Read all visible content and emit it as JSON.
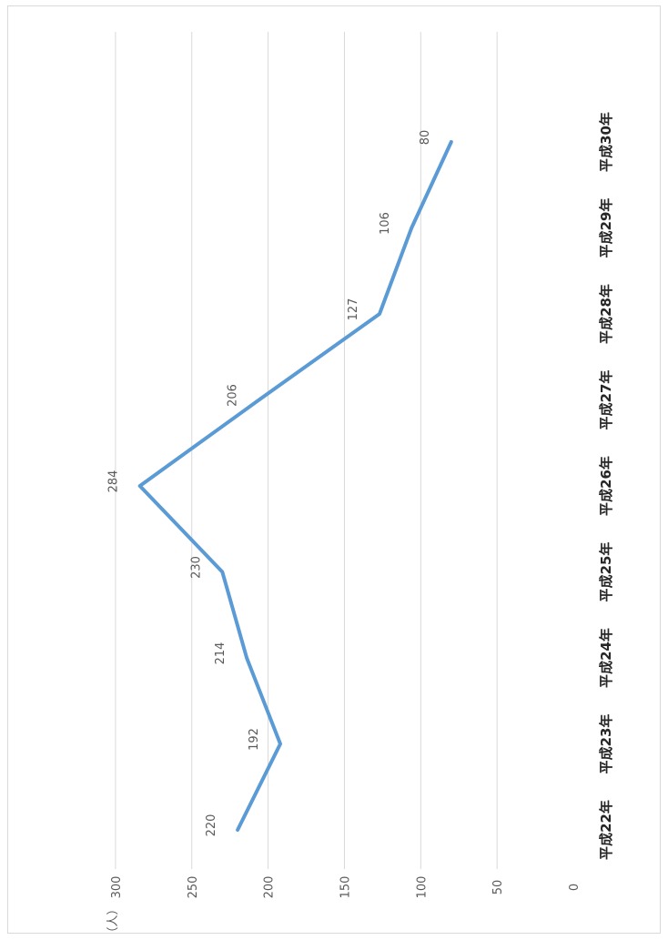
{
  "chart_data": {
    "type": "line",
    "orientation": "rotated-90-clockwise",
    "categories": [
      "平成22年",
      "平成23年",
      "平成24年",
      "平成25年",
      "平成26年",
      "平成27年",
      "平成28年",
      "平成29年",
      "平成30年"
    ],
    "series": [
      {
        "values": [
          220,
          192,
          214,
          230,
          284,
          206,
          127,
          106,
          80
        ]
      }
    ],
    "ylabel": "（人）",
    "ylim": [
      0,
      300
    ],
    "yticks": [
      0,
      50,
      100,
      150,
      200,
      250,
      300
    ],
    "grid": true,
    "legend": "none",
    "line_color": "#5b9bd5",
    "grid_color": "#d9d9d9"
  }
}
